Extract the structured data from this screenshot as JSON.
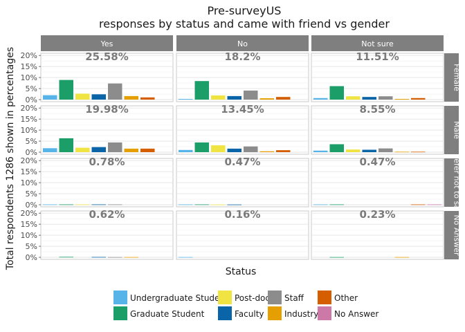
{
  "chart_data": {
    "type": "bar",
    "title": "Pre-surveyUS",
    "subtitle": "responses by status and came with friend vs gender",
    "xlabel": "Status",
    "ylabel": "Total respondents 1286 shown in percentages",
    "ylim": [
      0,
      21
    ],
    "y_ticks": [
      "20%",
      "15%",
      "10%",
      "5%",
      "0%"
    ],
    "y_tick_values": [
      20,
      15,
      10,
      5,
      0
    ],
    "grid": true,
    "facet_columns": [
      "Yes",
      "No",
      "Not sure"
    ],
    "facet_rows": [
      "Female",
      "Male",
      "Prefer not to say",
      "No Answer"
    ],
    "categories": [
      "Undergraduate Student",
      "Graduate Student",
      "Post-doc",
      "Faculty",
      "Staff",
      "Industry",
      "Other",
      "No Answer"
    ],
    "colors": [
      "#56B4E9",
      "#1B9E68",
      "#F0E442",
      "#0A64A8",
      "#8C8C8C",
      "#E69F00",
      "#D55E00",
      "#CC79A7"
    ],
    "legend_position": "bottom",
    "panels": [
      {
        "row": "Female",
        "column": "Yes",
        "total_label": "25.58%",
        "values": [
          2.0,
          8.9,
          2.7,
          2.4,
          7.3,
          1.6,
          1.0,
          0
        ]
      },
      {
        "row": "Female",
        "column": "No",
        "total_label": "18.2%",
        "values": [
          0.3,
          8.4,
          1.9,
          1.6,
          4.1,
          0.6,
          1.2,
          0
        ]
      },
      {
        "row": "Female",
        "column": "Not sure",
        "total_label": "11.51%",
        "values": [
          0.7,
          6.1,
          1.5,
          1.2,
          1.5,
          0.3,
          0.7,
          0
        ]
      },
      {
        "row": "Male",
        "column": "Yes",
        "total_label": "19.98%",
        "values": [
          1.8,
          6.3,
          2.0,
          2.3,
          4.4,
          1.6,
          1.6,
          0
        ]
      },
      {
        "row": "Male",
        "column": "No",
        "total_label": "13.45%",
        "values": [
          1.0,
          4.4,
          3.1,
          1.6,
          2.6,
          0.4,
          0.9,
          0
        ]
      },
      {
        "row": "Male",
        "column": "Not sure",
        "total_label": "8.55%",
        "values": [
          0.7,
          3.6,
          1.2,
          1.1,
          1.7,
          0.2,
          0.2,
          0
        ]
      },
      {
        "row": "Prefer not to say",
        "column": "Yes",
        "total_label": "0.78%",
        "values": [
          0.15,
          0.15,
          0.15,
          0.15,
          0.15,
          0,
          0,
          0
        ]
      },
      {
        "row": "Prefer not to say",
        "column": "No",
        "total_label": "0.47%",
        "values": [
          0.15,
          0.15,
          0.1,
          0.1,
          0,
          0,
          0,
          0
        ]
      },
      {
        "row": "Prefer not to say",
        "column": "Not sure",
        "total_label": "0.47%",
        "values": [
          0.15,
          0.15,
          0,
          0,
          0,
          0,
          0.15,
          0.15
        ]
      },
      {
        "row": "No Answer",
        "column": "Yes",
        "total_label": "0.62%",
        "values": [
          0,
          0.2,
          0,
          0.15,
          0.1,
          0.1,
          0,
          0
        ]
      },
      {
        "row": "No Answer",
        "column": "No",
        "total_label": "0.16%",
        "values": [
          0.1,
          0,
          0,
          0,
          0,
          0,
          0,
          0
        ]
      },
      {
        "row": "No Answer",
        "column": "Not sure",
        "total_label": "0.23%",
        "values": [
          0,
          0.1,
          0,
          0,
          0,
          0.1,
          0,
          0
        ]
      }
    ]
  }
}
